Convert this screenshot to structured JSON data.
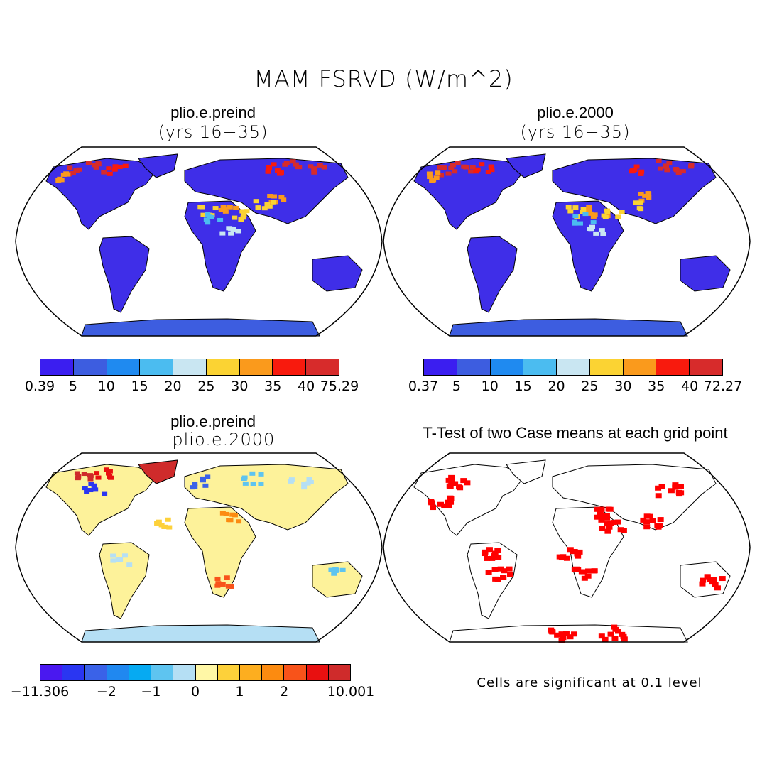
{
  "title": "MAM FSRVD (W/m^2)",
  "panels": {
    "tl": {
      "title": "plio.e.preind",
      "subtitle": "(yrs 16−35)"
    },
    "tr": {
      "title": "plio.e.2000",
      "subtitle": "(yrs 16−35)"
    },
    "bl": {
      "title": "plio.e.preind",
      "subtitle": "− plio.e.2000"
    },
    "br": {
      "title": "T-Test of two Case means at each grid point",
      "note": "Cells are significant at 0.1 level"
    }
  },
  "colorbars": {
    "tl": {
      "colors": [
        "#3b1ef0",
        "#3d5de0",
        "#1f8af0",
        "#4bbcf0",
        "#c9e6f2",
        "#fbd333",
        "#fa9a1c",
        "#f81a0d",
        "#d72b2b"
      ],
      "labels": [
        "0.39",
        "5",
        "10",
        "15",
        "20",
        "25",
        "30",
        "35",
        "40",
        "75.29"
      ]
    },
    "tr": {
      "colors": [
        "#3b1ef0",
        "#3d5de0",
        "#1f8af0",
        "#4bbcf0",
        "#c9e6f2",
        "#fbd333",
        "#fa9a1c",
        "#f81a0d",
        "#d72b2b"
      ],
      "labels": [
        "0.37",
        "5",
        "10",
        "15",
        "20",
        "25",
        "30",
        "35",
        "40",
        "72.27"
      ]
    },
    "bl": {
      "colors": [
        "#4a18f0",
        "#2a36f2",
        "#3a62e8",
        "#2088f0",
        "#06aaf2",
        "#5ec4f0",
        "#b5dff4",
        "#fff7a6",
        "#fdd13a",
        "#fdae1f",
        "#fc8b10",
        "#f8531a",
        "#e81010",
        "#cf2b2b"
      ],
      "labels": [
        "−11.306",
        "−2",
        "−1",
        "0",
        "1",
        "2",
        "10.001"
      ],
      "label_positions": [
        0,
        3,
        5,
        7,
        9,
        11,
        14
      ]
    }
  },
  "colors": {
    "land_tl": "#3f2ee8",
    "land_diff": "#fdf29a",
    "significant": "#ff0000"
  }
}
